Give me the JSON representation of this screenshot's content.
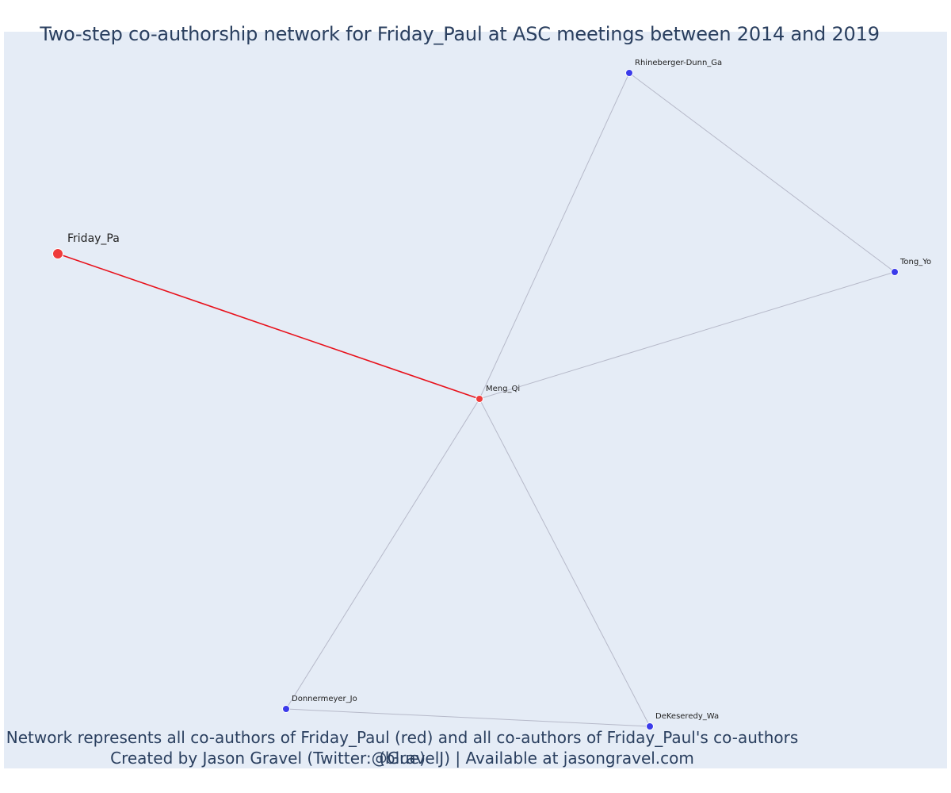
{
  "title": "Two-step co-authorship network for Friday_Paul at ASC meetings between 2014 and 2019",
  "caption_line1": "Network represents all co-authors of Friday_Paul (red) and all co-authors of Friday_Paul's co-authors (blue)",
  "caption_line2": "Created by Jason Gravel (Twitter:@GravelJ) | Available at jasongravel.com",
  "colors": {
    "background": "#e5ecf6",
    "focal_node": "#ef3b3b",
    "coauthor_node": "#3b3bea",
    "focal_edge": "#e8111b",
    "other_edge": "#b6b9c9"
  },
  "chart_data": {
    "type": "network",
    "nodes": [
      {
        "id": "Friday_Pa",
        "label": "Friday_Pa",
        "group": "focal"
      },
      {
        "id": "Meng_Qi",
        "label": "Meng_Qi",
        "group": "coauthor"
      },
      {
        "id": "Rhineberger-Dunn_Ga",
        "label": "Rhineberger-Dunn_Ga",
        "group": "second-step"
      },
      {
        "id": "Tong_Yo",
        "label": "Tong_Yo",
        "group": "second-step"
      },
      {
        "id": "Donnermeyer_Jo",
        "label": "Donnermeyer_Jo",
        "group": "second-step"
      },
      {
        "id": "DeKeseredy_Wa",
        "label": "DeKeseredy_Wa",
        "group": "second-step"
      }
    ],
    "edges": [
      {
        "source": "Friday_Pa",
        "target": "Meng_Qi",
        "type": "focal"
      },
      {
        "source": "Meng_Qi",
        "target": "Rhineberger-Dunn_Ga",
        "type": "other"
      },
      {
        "source": "Meng_Qi",
        "target": "Tong_Yo",
        "type": "other"
      },
      {
        "source": "Meng_Qi",
        "target": "Donnermeyer_Jo",
        "type": "other"
      },
      {
        "source": "Meng_Qi",
        "target": "DeKeseredy_Wa",
        "type": "other"
      },
      {
        "source": "Rhineberger-Dunn_Ga",
        "target": "Tong_Yo",
        "type": "other"
      },
      {
        "source": "Donnermeyer_Jo",
        "target": "DeKeseredy_Wa",
        "type": "other"
      }
    ]
  }
}
